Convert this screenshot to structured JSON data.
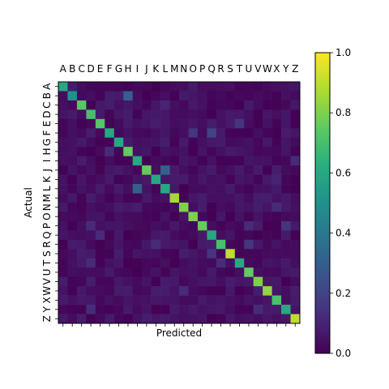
{
  "chart_data": {
    "type": "heatmap",
    "title": "",
    "xlabel": "Predicted",
    "ylabel": "Actual",
    "categories": [
      "A",
      "B",
      "C",
      "D",
      "E",
      "F",
      "G",
      "H",
      "I",
      "J",
      "K",
      "L",
      "M",
      "N",
      "O",
      "P",
      "Q",
      "R",
      "S",
      "T",
      "U",
      "V",
      "W",
      "X",
      "Y",
      "Z"
    ],
    "x_tick_position": "top",
    "colorbar": {
      "colormap": "viridis",
      "vmin": 0.0,
      "vmax": 1.0,
      "ticks": [
        "0.0",
        "0.2",
        "0.4",
        "0.6",
        "0.8",
        "1.0"
      ]
    },
    "diagonal": [
      0.6,
      0.5,
      0.73,
      0.7,
      0.73,
      0.6,
      0.6,
      0.76,
      0.6,
      0.76,
      0.6,
      0.6,
      0.86,
      0.8,
      0.8,
      0.76,
      0.6,
      0.7,
      0.9,
      0.6,
      0.76,
      0.8,
      0.83,
      0.7,
      0.6,
      0.9
    ],
    "off_diagonal": [
      {
        "row": 1,
        "col": 7,
        "value": 0.3
      },
      {
        "row": 9,
        "col": 11,
        "value": 0.3
      },
      {
        "row": 11,
        "col": 8,
        "value": 0.3
      },
      {
        "row": 5,
        "col": 14,
        "value": 0.15
      },
      {
        "row": 4,
        "col": 19,
        "value": 0.15
      },
      {
        "row": 5,
        "col": 16,
        "value": 0.2
      },
      {
        "row": 18,
        "col": 16,
        "value": 0.15
      },
      {
        "row": 17,
        "col": 20,
        "value": 0.15
      },
      {
        "row": 8,
        "col": 25,
        "value": 0.12
      },
      {
        "row": 2,
        "col": 11,
        "value": 0.1
      },
      {
        "row": 7,
        "col": 5,
        "value": 0.12
      },
      {
        "row": 22,
        "col": 13,
        "value": 0.12
      },
      {
        "row": 13,
        "col": 23,
        "value": 0.12
      },
      {
        "row": 15,
        "col": 20,
        "value": 0.12
      },
      {
        "row": 15,
        "col": 24,
        "value": 0.15
      },
      {
        "row": 15,
        "col": 3,
        "value": 0.12
      },
      {
        "row": 17,
        "col": 10,
        "value": 0.12
      },
      {
        "row": 19,
        "col": 3,
        "value": 0.12
      },
      {
        "row": 19,
        "col": 17,
        "value": 0.12
      },
      {
        "row": 24,
        "col": 3,
        "value": 0.12
      },
      {
        "row": 24,
        "col": 21,
        "value": 0.12
      },
      {
        "row": 10,
        "col": 23,
        "value": 0.1
      },
      {
        "row": 16,
        "col": 4,
        "value": 0.12
      }
    ],
    "background_range": [
      0.0,
      0.08
    ]
  }
}
